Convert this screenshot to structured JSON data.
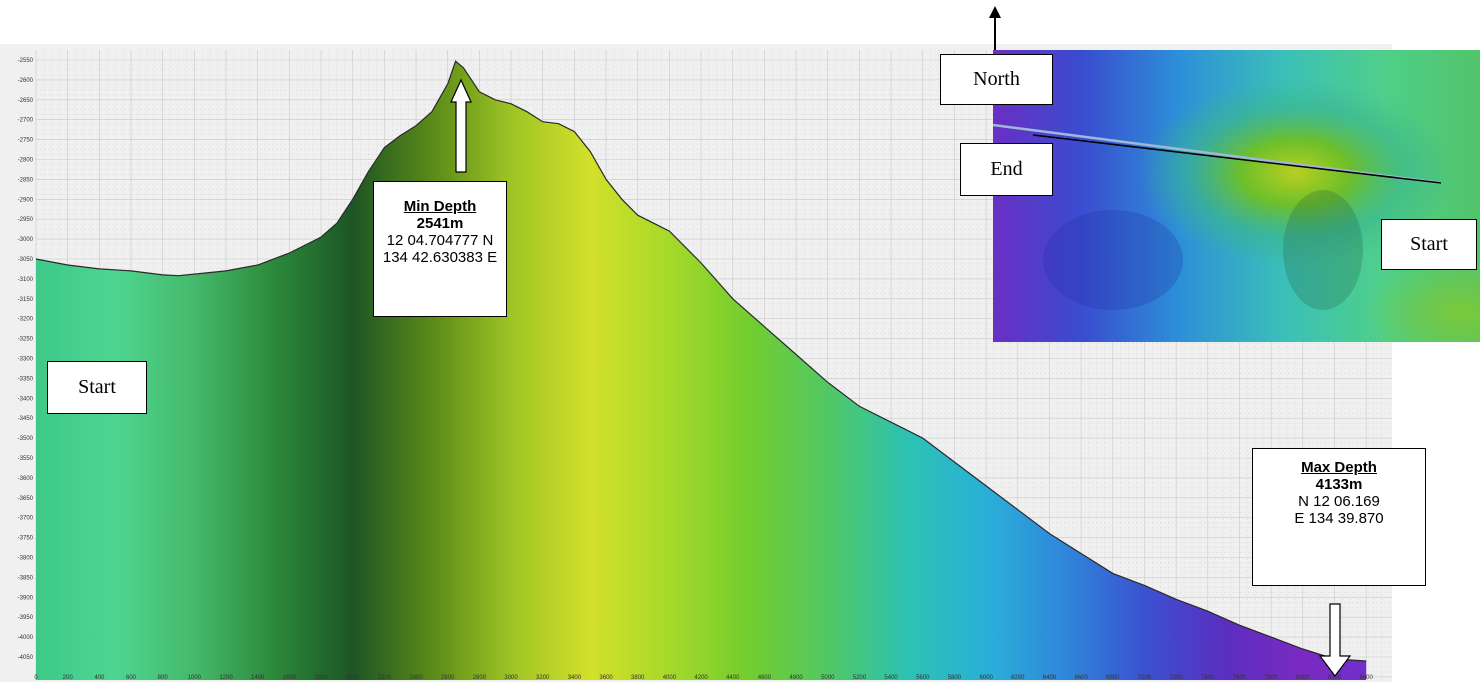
{
  "chart_data": {
    "type": "area",
    "title": "",
    "xlabel": "",
    "ylabel": "",
    "xlim": [
      0,
      8500
    ],
    "ylim": [
      -4100,
      -2550
    ],
    "x_ticks": [
      0,
      200,
      400,
      600,
      800,
      1000,
      1200,
      1400,
      1600,
      1800,
      2000,
      2200,
      2400,
      2600,
      2800,
      3000,
      3200,
      3400,
      3600,
      3800,
      4000,
      4200,
      4400,
      4600,
      4800,
      5000,
      5200,
      5400,
      5600,
      5800,
      6000,
      6200,
      6400,
      6600,
      6800,
      7000,
      7200,
      7400,
      7600,
      7800,
      8000,
      8200,
      8400
    ],
    "y_ticks": [
      -2550,
      -2600,
      -2650,
      -2700,
      -2750,
      -2800,
      -2850,
      -2900,
      -2950,
      -3000,
      -3050,
      -3100,
      -3150,
      -3200,
      -3250,
      -3300,
      -3350,
      -3400,
      -3450,
      -3500,
      -3550,
      -3600,
      -3650,
      -3700,
      -3750,
      -3800,
      -3850,
      -3900,
      -3950,
      -4000,
      -4050
    ],
    "grid": true,
    "series": [
      {
        "x": [
          0,
          200,
          400,
          600,
          800,
          900,
          1000,
          1200,
          1400,
          1600,
          1800,
          1900,
          2000,
          2100,
          2200,
          2300,
          2400,
          2500,
          2600,
          2650,
          2700,
          2800,
          2900,
          3000,
          3100,
          3200,
          3300,
          3400,
          3500,
          3600,
          3700,
          3800,
          3900,
          4000,
          4200,
          4400,
          4600,
          4800,
          5000,
          5200,
          5400,
          5600,
          5800,
          6000,
          6200,
          6400,
          6600,
          6800,
          7000,
          7200,
          7400,
          7600,
          7800,
          8000,
          8200,
          8400
        ],
        "y": [
          -3050,
          -3065,
          -3075,
          -3080,
          -3090,
          -3092,
          -3088,
          -3080,
          -3065,
          -3035,
          -2995,
          -2960,
          -2900,
          -2830,
          -2770,
          -2740,
          -2715,
          -2680,
          -2610,
          -2553,
          -2570,
          -2630,
          -2650,
          -2660,
          -2680,
          -2705,
          -2710,
          -2730,
          -2780,
          -2850,
          -2900,
          -2940,
          -2960,
          -2980,
          -3060,
          -3150,
          -3220,
          -3290,
          -3360,
          -3420,
          -3460,
          -3500,
          -3560,
          -3620,
          -3680,
          -3740,
          -3790,
          -3840,
          -3870,
          -3905,
          -3935,
          -3970,
          -4000,
          -4030,
          -4055,
          -4060
        ]
      }
    ],
    "fill_colors": [
      "#3ec98a",
      "#4ed590",
      "#45b96b",
      "#2c8a3c",
      "#1d5524",
      "#5a8a18",
      "#9ec425",
      "#d3e02a",
      "#a6d92a",
      "#73cd2e",
      "#52c864",
      "#2cc2b2",
      "#2ab0d8",
      "#2f86da",
      "#3a52d0",
      "#5a2fc0",
      "#7a2ac0",
      "#6e30d0"
    ]
  },
  "callouts": {
    "min": {
      "title": "Min Depth",
      "value": "2541m",
      "line1": "12 04.704777 N",
      "line2": "134 42.630383 E"
    },
    "max": {
      "title": "Max Depth",
      "value": "4133m",
      "line1": "N 12 06.169",
      "line2": "E 134 39.870"
    }
  },
  "labels": {
    "start_profile": "Start",
    "north": "North",
    "end": "End",
    "start_map": "Start"
  },
  "icons": {
    "min_arrow": "arrow-up-icon",
    "max_arrow": "arrow-down-icon",
    "north_arrow": "north-arrow-icon"
  }
}
